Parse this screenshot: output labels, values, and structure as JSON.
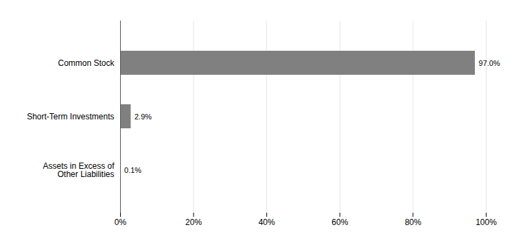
{
  "chart_data": {
    "type": "bar",
    "orientation": "horizontal",
    "categories": [
      "Assets in Excess of\nOther Liabilities",
      "Short-Term Investments",
      "Common Stock"
    ],
    "values": [
      0.1,
      2.9,
      97.0
    ],
    "value_labels": [
      "0.1%",
      "2.9%",
      "97.0%"
    ],
    "data_labels": true,
    "color": "#808080",
    "xlim": [
      0,
      100
    ],
    "xticks": [
      {
        "value": 0,
        "label": "0%"
      },
      {
        "value": 20,
        "label": "20%"
      },
      {
        "value": 40,
        "label": "40%"
      },
      {
        "value": 60,
        "label": "60%"
      },
      {
        "value": 80,
        "label": "80%"
      },
      {
        "value": 100,
        "label": "100%"
      }
    ],
    "grid": true
  }
}
